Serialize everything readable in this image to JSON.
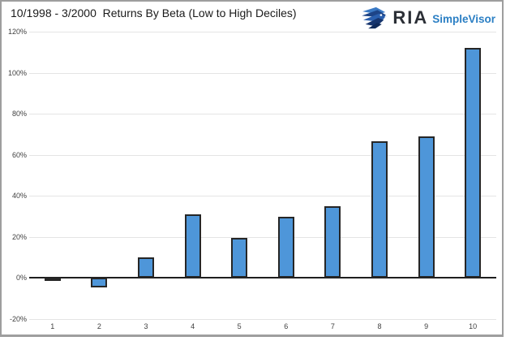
{
  "logo": {
    "company": "RIA",
    "product": "SimpleVisor",
    "company_color": "#2b2f36",
    "product_color": "#2b7fc4",
    "icon": "eagle-icon"
  },
  "chart_data": {
    "type": "bar",
    "title": "10/1998 - 3/2000  Returns By Beta (Low to High Deciles)",
    "xlabel": "",
    "ylabel": "",
    "categories": [
      "1",
      "2",
      "3",
      "4",
      "5",
      "6",
      "7",
      "8",
      "9",
      "10"
    ],
    "values": [
      -1.2,
      -4.7,
      10,
      31,
      19.5,
      30,
      35,
      66.5,
      69,
      112
    ],
    "unit": "%",
    "ylim": [
      -20,
      120
    ],
    "y_ticks": [
      120,
      100,
      80,
      60,
      40,
      20,
      0,
      -20
    ],
    "y_tick_labels": [
      "120%",
      "100%",
      "80%",
      "60%",
      "40%",
      "20%",
      "0%",
      "-20%"
    ],
    "grid": true,
    "legend": false,
    "bar_color": "#4e96d9",
    "bar_border_color": "#262626",
    "gridline_color": "#e4e4e4",
    "axis_line_color": "#1f1f1f"
  }
}
